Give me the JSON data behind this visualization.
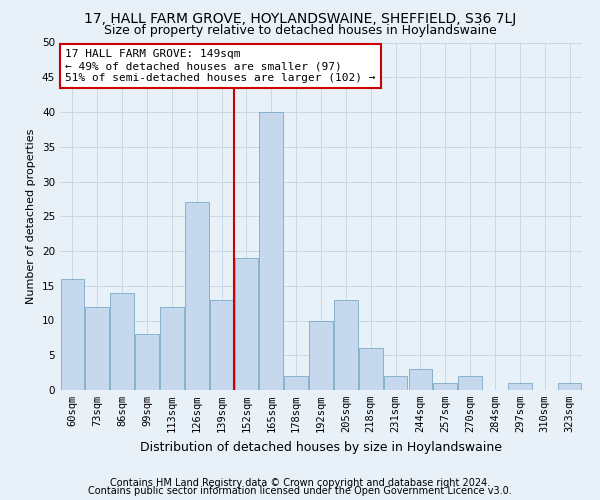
{
  "title1": "17, HALL FARM GROVE, HOYLANDSWAINE, SHEFFIELD, S36 7LJ",
  "title2": "Size of property relative to detached houses in Hoylandswaine",
  "xlabel": "Distribution of detached houses by size in Hoylandswaine",
  "ylabel": "Number of detached properties",
  "categories": [
    "60sqm",
    "73sqm",
    "86sqm",
    "99sqm",
    "113sqm",
    "126sqm",
    "139sqm",
    "152sqm",
    "165sqm",
    "178sqm",
    "192sqm",
    "205sqm",
    "218sqm",
    "231sqm",
    "244sqm",
    "257sqm",
    "270sqm",
    "284sqm",
    "297sqm",
    "310sqm",
    "323sqm"
  ],
  "values": [
    16,
    12,
    14,
    8,
    12,
    27,
    13,
    19,
    40,
    2,
    10,
    13,
    6,
    2,
    3,
    1,
    2,
    0,
    1,
    0,
    1
  ],
  "bar_color": "#c5d8ed",
  "bar_edge_color": "#7aaac8",
  "reference_line_label": "17 HALL FARM GROVE: 149sqm",
  "annotation_line1": "← 49% of detached houses are smaller (97)",
  "annotation_line2": "51% of semi-detached houses are larger (102) →",
  "annotation_box_color": "#ffffff",
  "annotation_box_edge": "#cc0000",
  "vline_color": "#cc0000",
  "vline_index": 7,
  "ylim": [
    0,
    50
  ],
  "yticks": [
    0,
    5,
    10,
    15,
    20,
    25,
    30,
    35,
    40,
    45,
    50
  ],
  "grid_color": "#c8d8e8",
  "footnote1": "Contains HM Land Registry data © Crown copyright and database right 2024.",
  "footnote2": "Contains public sector information licensed under the Open Government Licence v3.0.",
  "bg_color": "#e8f0f8",
  "plot_bg_color": "#e8f0f8",
  "title1_fontsize": 10,
  "title2_fontsize": 9,
  "xlabel_fontsize": 9,
  "ylabel_fontsize": 8,
  "tick_fontsize": 7.5,
  "annot_fontsize": 8,
  "footnote_fontsize": 7
}
